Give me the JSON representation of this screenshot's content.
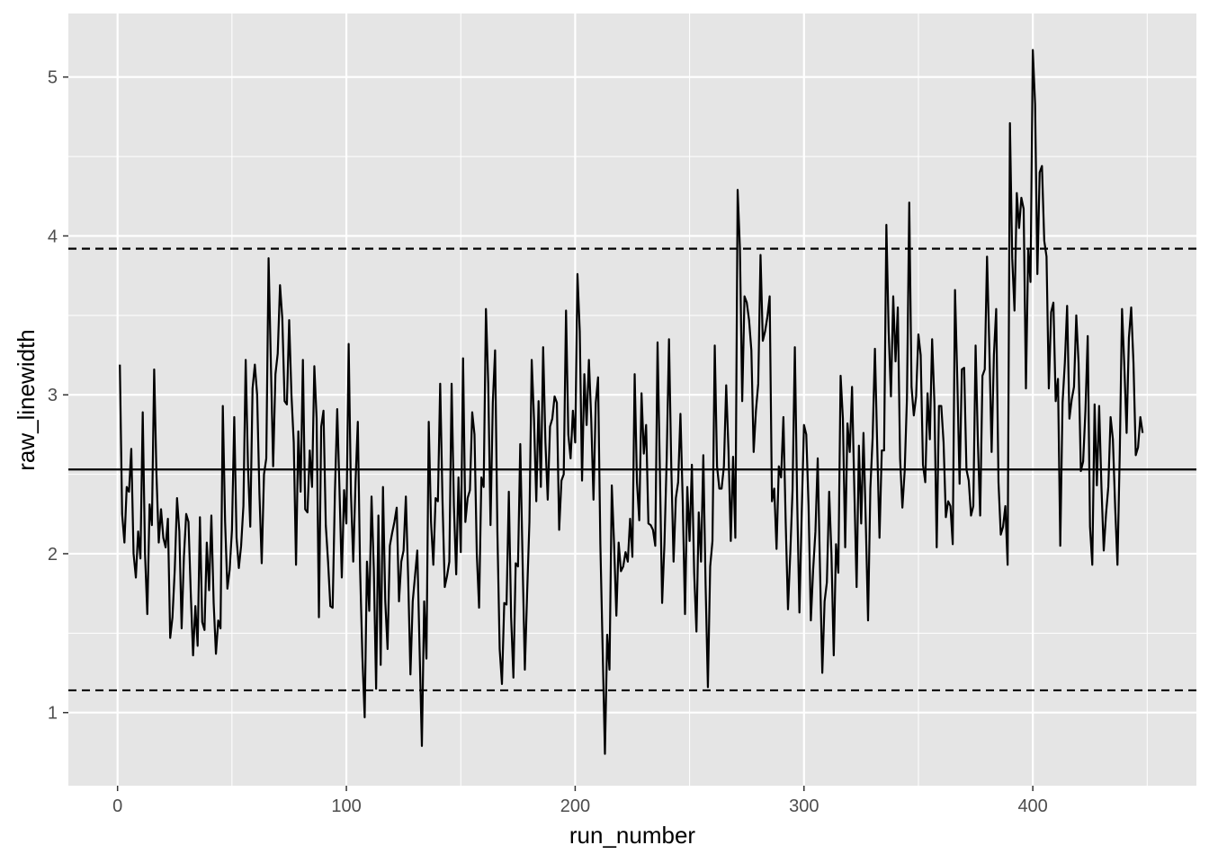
{
  "chart_data": {
    "type": "line",
    "xlabel": "run_number",
    "ylabel": "raw_linewidth",
    "xlim": [
      -21.5,
      471.5
    ],
    "ylim": [
      0.54,
      5.4
    ],
    "x_ticks": [
      0,
      100,
      200,
      300,
      400
    ],
    "x_minor_ticks": [
      50,
      150,
      250,
      350,
      450
    ],
    "y_ticks": [
      1,
      2,
      3,
      4,
      5
    ],
    "y_minor_ticks": [
      1.5,
      2.5,
      3.5,
      4.5
    ],
    "grid": true,
    "legend": "none",
    "reference_lines": [
      {
        "role": "center",
        "y": 2.53,
        "style": "solid"
      },
      {
        "role": "upper-limit",
        "y": 3.92,
        "style": "dashed"
      },
      {
        "role": "lower-limit",
        "y": 1.14,
        "style": "dashed"
      }
    ],
    "colors": {
      "panel": "#e5e5e5",
      "grid": "#ffffff",
      "line": "#000000",
      "tick_text": "#4d4d4d"
    },
    "series": [
      {
        "x_start": 1,
        "x_step": 1,
        "values": [
          3.19,
          2.25,
          2.07,
          2.42,
          2.39,
          2.66,
          2.0,
          1.85,
          2.14,
          1.97,
          2.89,
          2.0,
          1.62,
          2.31,
          2.18,
          3.16,
          2.5,
          2.07,
          2.28,
          2.1,
          2.04,
          2.22,
          1.47,
          1.6,
          1.9,
          2.35,
          2.14,
          1.53,
          1.98,
          2.25,
          2.2,
          1.75,
          1.36,
          1.67,
          1.42,
          2.23,
          1.57,
          1.52,
          2.07,
          1.77,
          2.24,
          1.69,
          1.37,
          1.58,
          1.53,
          2.93,
          2.2,
          1.78,
          1.9,
          2.15,
          2.86,
          2.1,
          1.91,
          2.05,
          2.3,
          3.22,
          2.55,
          2.17,
          3.04,
          3.19,
          3.0,
          2.38,
          1.94,
          2.5,
          2.6,
          3.86,
          3.2,
          2.55,
          3.13,
          3.26,
          3.69,
          3.48,
          2.96,
          2.94,
          3.47,
          3.0,
          2.7,
          1.93,
          2.77,
          2.39,
          3.22,
          2.28,
          2.26,
          2.65,
          2.42,
          3.18,
          2.85,
          1.6,
          2.8,
          2.9,
          2.18,
          1.95,
          1.67,
          1.66,
          2.39,
          2.91,
          2.4,
          1.85,
          2.4,
          2.19,
          3.32,
          2.38,
          1.95,
          2.45,
          2.83,
          1.9,
          1.35,
          0.97,
          1.95,
          1.64,
          2.36,
          1.9,
          1.15,
          2.24,
          1.3,
          2.42,
          1.7,
          1.4,
          2.05,
          2.13,
          2.2,
          2.29,
          1.7,
          1.95,
          2.02,
          2.36,
          1.85,
          1.24,
          1.7,
          1.86,
          2.02,
          1.4,
          0.79,
          1.7,
          1.34,
          2.83,
          2.2,
          1.93,
          2.35,
          2.33,
          3.07,
          2.34,
          1.79,
          1.86,
          1.95,
          3.07,
          2.3,
          1.87,
          2.48,
          2.01,
          3.23,
          2.2,
          2.35,
          2.4,
          2.89,
          2.75,
          2.0,
          1.66,
          2.48,
          2.42,
          3.54,
          3.07,
          2.18,
          2.95,
          3.28,
          2.14,
          1.4,
          1.18,
          1.69,
          1.68,
          2.39,
          1.6,
          1.22,
          1.94,
          1.92,
          2.69,
          1.96,
          1.27,
          1.75,
          2.2,
          3.22,
          2.85,
          2.33,
          2.96,
          2.42,
          3.3,
          2.7,
          2.34,
          2.8,
          2.85,
          2.99,
          2.95,
          2.15,
          2.46,
          2.5,
          3.53,
          2.75,
          2.6,
          2.9,
          2.7,
          3.76,
          3.4,
          2.46,
          3.13,
          2.81,
          3.22,
          2.85,
          2.34,
          2.95,
          3.11,
          2.06,
          1.4,
          0.74,
          1.49,
          1.27,
          2.43,
          2.06,
          1.61,
          2.07,
          1.89,
          1.92,
          2.01,
          1.95,
          2.22,
          1.98,
          3.13,
          2.45,
          2.21,
          3.01,
          2.63,
          2.81,
          2.19,
          2.18,
          2.15,
          2.05,
          3.33,
          2.54,
          1.69,
          2.06,
          2.6,
          3.35,
          2.55,
          1.95,
          2.35,
          2.45,
          2.88,
          2.33,
          1.62,
          2.42,
          2.08,
          2.56,
          1.88,
          1.51,
          2.26,
          1.95,
          2.62,
          1.8,
          1.16,
          1.92,
          2.08,
          3.31,
          2.55,
          2.41,
          2.41,
          2.55,
          3.06,
          2.65,
          2.08,
          2.61,
          2.1,
          4.29,
          3.92,
          2.96,
          3.62,
          3.58,
          3.47,
          3.28,
          2.64,
          2.9,
          3.07,
          3.88,
          3.34,
          3.4,
          3.49,
          3.62,
          2.33,
          2.41,
          2.03,
          2.55,
          2.48,
          2.86,
          2.2,
          1.65,
          2.0,
          2.4,
          3.3,
          2.35,
          1.63,
          2.25,
          2.81,
          2.75,
          2.3,
          1.58,
          1.9,
          2.14,
          2.6,
          1.9,
          1.25,
          1.7,
          1.82,
          2.39,
          2.0,
          1.36,
          2.06,
          1.88,
          3.12,
          2.85,
          2.04,
          2.82,
          2.64,
          3.05,
          2.4,
          1.79,
          2.68,
          2.19,
          2.76,
          2.2,
          1.58,
          2.41,
          2.73,
          3.29,
          2.68,
          2.1,
          2.65,
          2.65,
          4.07,
          3.4,
          2.99,
          3.62,
          3.21,
          3.55,
          2.6,
          2.29,
          2.52,
          2.98,
          4.21,
          3.05,
          2.87,
          2.99,
          3.38,
          3.25,
          2.56,
          2.45,
          3.01,
          2.72,
          3.35,
          2.95,
          2.04,
          2.93,
          2.93,
          2.7,
          2.23,
          2.33,
          2.3,
          2.06,
          3.66,
          3.1,
          2.44,
          3.16,
          3.17,
          2.53,
          2.46,
          2.24,
          2.3,
          3.31,
          2.7,
          2.24,
          3.12,
          3.16,
          3.87,
          3.3,
          2.64,
          3.25,
          3.54,
          2.45,
          2.12,
          2.17,
          2.3,
          1.93,
          4.71,
          3.86,
          3.53,
          4.27,
          4.05,
          4.24,
          4.17,
          3.04,
          3.92,
          3.71,
          5.17,
          4.83,
          3.76,
          4.4,
          4.44,
          3.97,
          3.87,
          3.04,
          3.52,
          3.58,
          2.96,
          3.1,
          2.05,
          2.95,
          3.2,
          3.56,
          2.85,
          2.97,
          3.05,
          3.5,
          3.2,
          2.52,
          2.58,
          2.9,
          3.37,
          2.17,
          1.93,
          2.94,
          2.43,
          2.93,
          2.42,
          2.02,
          2.25,
          2.42,
          2.86,
          2.72,
          2.29,
          1.93,
          2.63,
          3.54,
          3.18,
          2.76,
          3.36,
          3.55,
          3.2,
          2.62,
          2.67,
          2.86,
          2.76
        ]
      }
    ]
  }
}
